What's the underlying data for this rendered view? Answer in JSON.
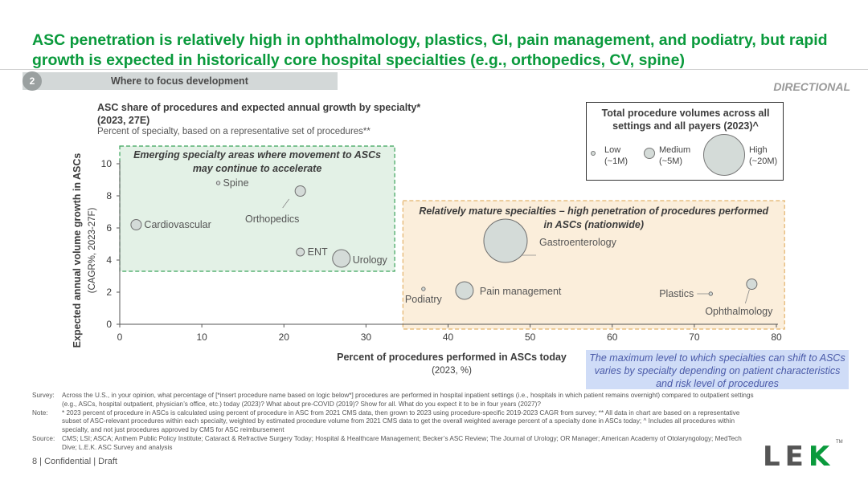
{
  "headline": "ASC penetration is relatively high in ophthalmology, plastics, GI, pain management, and podiatry, but rapid growth is expected in historically core hospital specialties (e.g., orthopedics, CV, spine)",
  "section": {
    "number": "2",
    "label": "Where to focus development"
  },
  "tag": "DIRECTIONAL",
  "chart_header": {
    "title_line1": "ASC share of procedures and expected annual growth by specialty*",
    "title_line2": "(2023, 27E)",
    "subtitle": "Percent of specialty, based on a representative set of procedures**"
  },
  "legend": {
    "title": "Total procedure volumes across all settings and all payers (2023)^",
    "items": [
      {
        "label": "Low",
        "sub": "(~1M)"
      },
      {
        "label": "Medium",
        "sub": "(~5M)"
      },
      {
        "label": "High",
        "sub": "(~20M)"
      }
    ]
  },
  "callout": "The maximum level to which specialties can shift to ASCs varies by specialty depending on patient characteristics and risk level of procedures",
  "chart_data": {
    "type": "scatter",
    "xlabel": "Percent of procedures performed in ASCs today",
    "xlabel_sub": "(2023, %)",
    "ylabel": "Expected annual volume growth in ASCs",
    "ylabel_sub": "(CAGR%, 2023-27F)",
    "xlim": [
      0,
      80
    ],
    "ylim": [
      0,
      10
    ],
    "xticks": [
      0,
      10,
      20,
      30,
      40,
      50,
      60,
      70,
      80
    ],
    "yticks": [
      0,
      2,
      4,
      6,
      8,
      10
    ],
    "regions": [
      {
        "label": "Emerging specialty areas where movement to ASCs may continue to accelerate",
        "x": [
          0,
          33.5
        ],
        "y": [
          3.3,
          11.1
        ],
        "color": "#e3f1e6",
        "border": "#3aa35a"
      },
      {
        "label": "Relatively mature specialties – high penetration of procedures performed in ASCs (nationwide)",
        "x": [
          34.5,
          81
        ],
        "y": [
          -0.3,
          7.7
        ],
        "color": "#fbeedb",
        "border": "#e3b36a"
      }
    ],
    "points": [
      {
        "name": "Spine",
        "x": 12,
        "y": 8.8,
        "volume": "low"
      },
      {
        "name": "Orthopedics",
        "x": 22,
        "y": 8.3,
        "volume": "medium"
      },
      {
        "name": "Cardiovascular",
        "x": 2,
        "y": 6.2,
        "volume": "medium"
      },
      {
        "name": "ENT",
        "x": 22,
        "y": 4.5,
        "volume": "low-medium"
      },
      {
        "name": "Urology",
        "x": 27,
        "y": 4.1,
        "volume": "medium-high"
      },
      {
        "name": "Gastroenterology",
        "x": 47,
        "y": 5.2,
        "volume": "high"
      },
      {
        "name": "Pain management",
        "x": 42,
        "y": 2.1,
        "volume": "medium-high"
      },
      {
        "name": "Podiatry",
        "x": 37,
        "y": 2.2,
        "volume": "low"
      },
      {
        "name": "Plastics",
        "x": 72,
        "y": 1.9,
        "volume": "low"
      },
      {
        "name": "Ophthalmology",
        "x": 77,
        "y": 2.5,
        "volume": "medium"
      }
    ],
    "colors": {
      "bubble_fill": "#d4dbd8",
      "bubble_stroke": "#6f6f6f"
    }
  },
  "footnotes": [
    {
      "key": "Survey:",
      "text": "Across the U.S., in your opinion, what percentage of [*insert procedure name based on logic below*] procedures are performed in hospital inpatient settings (i.e., hospitals in which patient remains overnight) compared to outpatient settings (e.g., ASCs, hospital outpatient, physician’s office, etc.) today (2023)? What about pre-COVID (2019)? Show for all. What do you expect it to be in four years (2027)?"
    },
    {
      "key": "Note:",
      "text": "* 2023 percent of procedure in ASCs is calculated using percent of procedure in ASC from 2021 CMS data, then grown to 2023 using procedure-specific 2019-2023 CAGR from survey; ** All data in chart are based on a representative subset of ASC-relevant procedures within each specialty, weighted by estimated procedure volume from 2021 CMS data to get the overall weighted average percent of a specialty done in ASCs today; ^ Includes all procedures within specialty, and not just procedures approved by CMS for ASC reimbursement"
    },
    {
      "key": "Source:",
      "text": "CMS; LSI; ASCA; Anthem Public Policy Institute; Cataract & Refractive Surgery Today; Hospital & Healthcare Management; Becker’s ASC Review; The Journal of Urology; OR Manager; American Academy of Otolaryngology; MedTech Dive; L.E.K. ASC Survey and analysis"
    }
  ],
  "footer": "8  |  Confidential  |  Draft",
  "logo": {
    "l": "L",
    "e": "E",
    "k": "K",
    "tm": "TM"
  }
}
